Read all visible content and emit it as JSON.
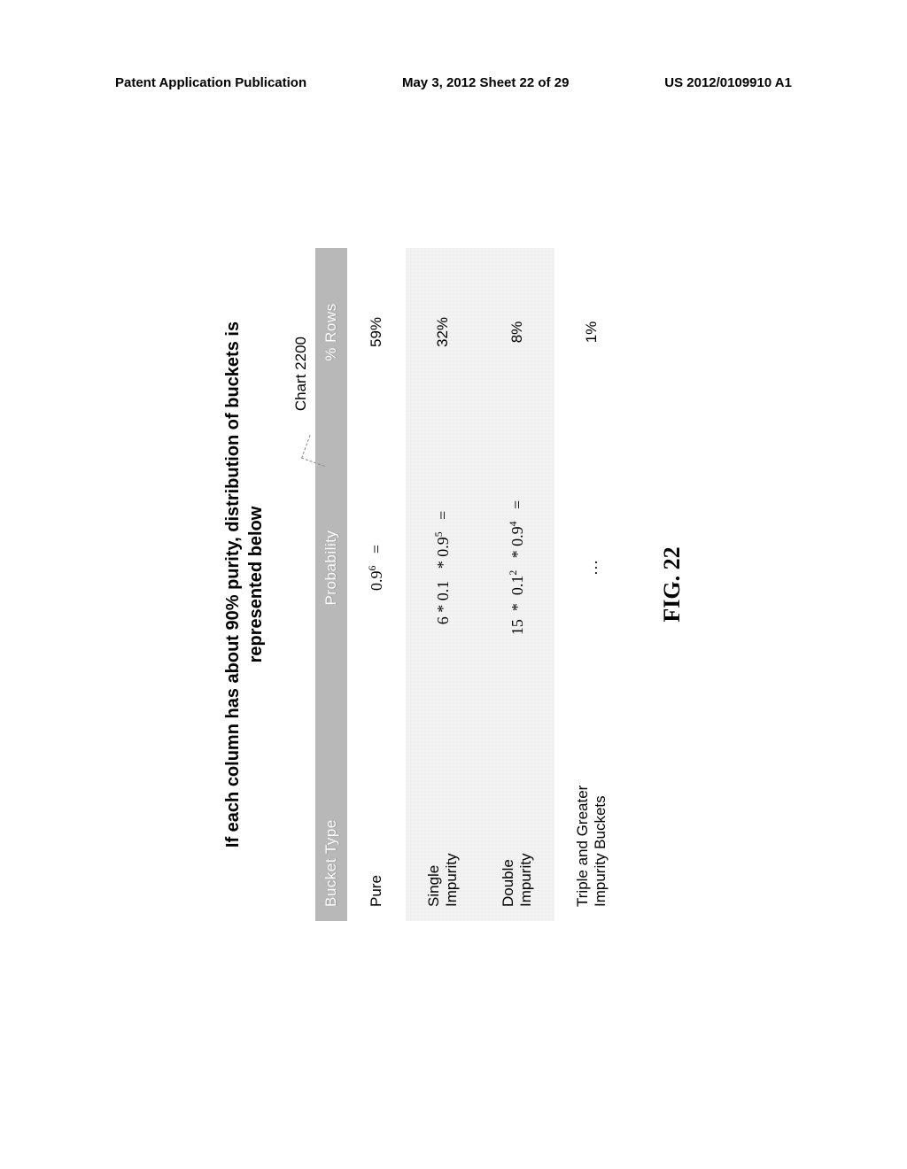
{
  "header": {
    "left": "Patent Application Publication",
    "center": "May 3, 2012  Sheet 22 of 29",
    "right": "US 2012/0109910 A1"
  },
  "figure": {
    "title_line1": "If each column has about 90% purity, distribution of buckets is",
    "title_line2": "represented below",
    "chart_label": "Chart 2200",
    "caption": "FIG. 22",
    "table": {
      "columns": [
        "Bucket Type",
        "Probability",
        "% Rows"
      ],
      "rows": [
        {
          "bucket_type": "Pure",
          "probability_html": "0.9<span class=\"sup\">6</span>&nbsp;&nbsp;&nbsp;=",
          "pct": "59%",
          "shaded": false
        },
        {
          "bucket_type": "Single<br>Impurity",
          "probability_html": "6 * 0.1&nbsp;&nbsp;&nbsp;* 0.9<span class=\"sup\">5</span>&nbsp;&nbsp;&nbsp;=",
          "pct": "32%",
          "shaded": true
        },
        {
          "bucket_type": "Double<br>Impurity",
          "probability_html": "15&nbsp;&nbsp;*&nbsp;&nbsp;0.1<span class=\"sup\">2</span>&nbsp;&nbsp;&nbsp;* 0.9<span class=\"sup\">4</span>&nbsp;&nbsp;&nbsp;=",
          "pct": "8%",
          "shaded": true
        },
        {
          "bucket_type": "Triple and Greater<br>Impurity Buckets",
          "probability_html": "&hellip;",
          "pct": "1%",
          "shaded": false
        }
      ],
      "header_bg": "#b8b8b8",
      "header_fg": "#ffffff",
      "body_fontsize": 17
    }
  }
}
